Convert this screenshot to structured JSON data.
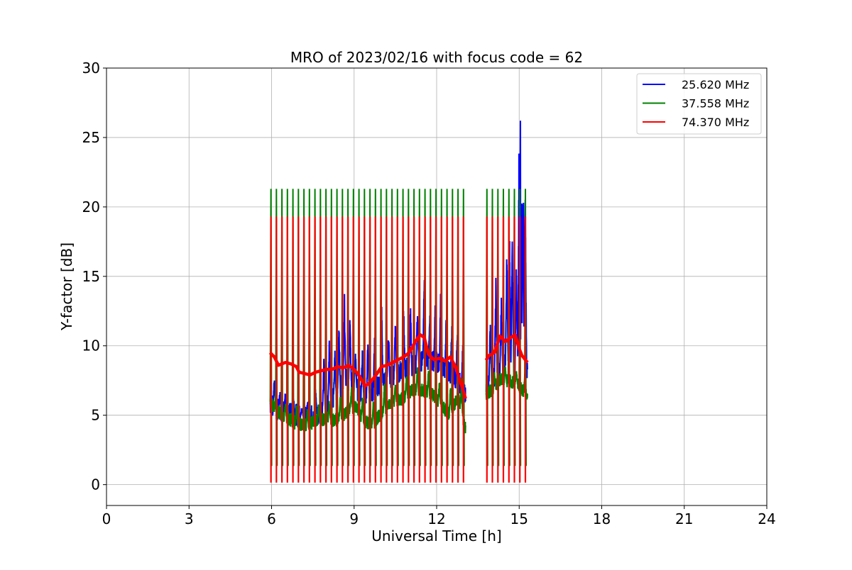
{
  "chart_data": {
    "type": "line",
    "title": "MRO of 2023/02/16 with focus code = 62",
    "xlabel": "Universal Time [h]",
    "ylabel": "Y-factor [dB]",
    "xlim": [
      0,
      24
    ],
    "ylim": [
      -1.5,
      30
    ],
    "xticks": [
      0,
      3,
      6,
      9,
      12,
      15,
      18,
      21,
      24
    ],
    "yticks": [
      0,
      5,
      10,
      15,
      20,
      25,
      30
    ],
    "grid": true,
    "legend_position": "top-right",
    "series": [
      {
        "name": "25.620 MHz",
        "color": "#0000ff",
        "baseline": [
          [
            5.95,
            5.8
          ],
          [
            6.3,
            5.3
          ],
          [
            6.8,
            5.1
          ],
          [
            7.3,
            4.8
          ],
          [
            7.8,
            5.2
          ],
          [
            8.3,
            6.4
          ],
          [
            8.7,
            7.6
          ],
          [
            9.0,
            7.2
          ],
          [
            9.3,
            6.2
          ],
          [
            9.7,
            6.8
          ],
          [
            10.2,
            7.6
          ],
          [
            10.7,
            8.2
          ],
          [
            11.2,
            8.6
          ],
          [
            11.6,
            9.0
          ],
          [
            12.0,
            8.8
          ],
          [
            12.4,
            8.2
          ],
          [
            12.8,
            7.4
          ],
          [
            13.05,
            6.5
          ],
          [
            13.3,
            7.4
          ],
          [
            13.7,
            6.6
          ],
          [
            14.0,
            7.4
          ],
          [
            14.3,
            8.4
          ],
          [
            14.6,
            8.9
          ],
          [
            14.9,
            8.6
          ],
          [
            15.05,
            10.0
          ],
          [
            15.15,
            11.5
          ],
          [
            15.3,
            8.0
          ]
        ],
        "peaks": [
          [
            6.1,
            7.9
          ],
          [
            6.3,
            7.0
          ],
          [
            6.5,
            6.9
          ],
          [
            6.8,
            6.4
          ],
          [
            7.1,
            5.6
          ],
          [
            7.3,
            6.2
          ],
          [
            7.6,
            7.0
          ],
          [
            7.9,
            9.6
          ],
          [
            8.1,
            10.6
          ],
          [
            8.3,
            9.8
          ],
          [
            8.45,
            12.0
          ],
          [
            8.65,
            14.2
          ],
          [
            8.85,
            12.3
          ],
          [
            9.05,
            10.0
          ],
          [
            9.3,
            10.1
          ],
          [
            9.5,
            11.0
          ],
          [
            9.75,
            12.3
          ],
          [
            10.0,
            13.1
          ],
          [
            10.25,
            11.6
          ],
          [
            10.5,
            12.2
          ],
          [
            10.8,
            13.2
          ],
          [
            11.05,
            13.5
          ],
          [
            11.3,
            13.1
          ],
          [
            11.55,
            16.7
          ],
          [
            11.75,
            12.6
          ],
          [
            11.95,
            13.8
          ],
          [
            12.15,
            14.9
          ],
          [
            12.35,
            12.7
          ],
          [
            12.55,
            12.0
          ],
          [
            12.75,
            11.5
          ],
          [
            12.95,
            11.0
          ],
          [
            13.25,
            12.2
          ],
          [
            13.55,
            11.2
          ],
          [
            13.75,
            14.7
          ],
          [
            13.95,
            12.3
          ],
          [
            14.15,
            15.8
          ],
          [
            14.35,
            13.8
          ],
          [
            14.55,
            17.9
          ],
          [
            14.65,
            18.6
          ],
          [
            14.75,
            18.9
          ],
          [
            14.9,
            16.2
          ],
          [
            15.0,
            26.7
          ],
          [
            15.05,
            28.6
          ],
          [
            15.1,
            25.5
          ],
          [
            15.15,
            22.1
          ],
          [
            15.22,
            21.0
          ]
        ]
      },
      {
        "name": "37.558 MHz",
        "color": "#008000",
        "baseline": [
          [
            5.95,
            5.9
          ],
          [
            6.2,
            5.3
          ],
          [
            6.5,
            4.9
          ],
          [
            6.9,
            4.4
          ],
          [
            7.3,
            4.3
          ],
          [
            7.7,
            4.6
          ],
          [
            8.0,
            4.8
          ],
          [
            8.3,
            4.6
          ],
          [
            8.6,
            5.0
          ],
          [
            8.9,
            5.6
          ],
          [
            9.1,
            5.5
          ],
          [
            9.4,
            4.5
          ],
          [
            9.7,
            4.4
          ],
          [
            10.0,
            5.2
          ],
          [
            10.3,
            5.9
          ],
          [
            10.7,
            6.1
          ],
          [
            11.1,
            6.8
          ],
          [
            11.5,
            6.8
          ],
          [
            11.8,
            6.6
          ],
          [
            12.1,
            6.0
          ],
          [
            12.4,
            5.0
          ],
          [
            12.8,
            6.3
          ],
          [
            13.05,
            4.0
          ],
          [
            13.2,
            7.0
          ],
          [
            13.5,
            6.2
          ],
          [
            13.75,
            6.4
          ],
          [
            14.0,
            6.8
          ],
          [
            14.3,
            7.6
          ],
          [
            14.6,
            7.5
          ],
          [
            14.9,
            7.3
          ],
          [
            15.1,
            6.9
          ],
          [
            15.3,
            6.3
          ]
        ],
        "peaks": [
          [
            6.15,
            6.9
          ],
          [
            6.5,
            6.2
          ],
          [
            6.9,
            5.8
          ],
          [
            7.3,
            5.7
          ],
          [
            7.7,
            6.2
          ],
          [
            8.1,
            6.3
          ],
          [
            8.5,
            6.9
          ],
          [
            8.9,
            7.2
          ],
          [
            9.3,
            6.6
          ],
          [
            9.7,
            6.3
          ],
          [
            10.1,
            7.4
          ],
          [
            10.5,
            7.8
          ],
          [
            10.9,
            8.1
          ],
          [
            11.3,
            8.8
          ],
          [
            11.7,
            8.4
          ],
          [
            12.1,
            7.9
          ],
          [
            12.5,
            7.4
          ],
          [
            12.9,
            7.8
          ],
          [
            13.3,
            8.2
          ],
          [
            13.7,
            7.8
          ],
          [
            14.1,
            8.3
          ],
          [
            14.5,
            8.6
          ],
          [
            14.9,
            8.3
          ],
          [
            15.2,
            8.0
          ]
        ],
        "dropout_min": 3.2
      },
      {
        "name": "74.370 MHz",
        "color": "#ff0000",
        "baseline": [
          [
            5.95,
            9.5
          ],
          [
            6.1,
            9.2
          ],
          [
            6.25,
            8.6
          ],
          [
            6.5,
            8.8
          ],
          [
            6.7,
            8.7
          ],
          [
            6.9,
            8.5
          ],
          [
            7.0,
            8.1
          ],
          [
            7.2,
            8.0
          ],
          [
            7.4,
            7.9
          ],
          [
            7.6,
            8.1
          ],
          [
            7.8,
            8.2
          ],
          [
            8.0,
            8.3
          ],
          [
            8.2,
            8.3
          ],
          [
            8.4,
            8.5
          ],
          [
            8.6,
            8.4
          ],
          [
            8.8,
            8.6
          ],
          [
            9.0,
            8.3
          ],
          [
            9.2,
            7.8
          ],
          [
            9.4,
            7.1
          ],
          [
            9.6,
            7.4
          ],
          [
            9.8,
            7.9
          ],
          [
            10.0,
            8.5
          ],
          [
            10.2,
            8.6
          ],
          [
            10.4,
            8.8
          ],
          [
            10.6,
            9.0
          ],
          [
            10.8,
            9.2
          ],
          [
            11.0,
            9.5
          ],
          [
            11.2,
            10.2
          ],
          [
            11.4,
            10.8
          ],
          [
            11.55,
            10.6
          ],
          [
            11.7,
            9.4
          ],
          [
            11.9,
            9.0
          ],
          [
            12.1,
            9.1
          ],
          [
            12.3,
            8.9
          ],
          [
            12.5,
            9.2
          ],
          [
            12.7,
            8.4
          ],
          [
            12.9,
            7.2
          ],
          [
            13.05,
            6.2
          ],
          [
            13.2,
            9.4
          ],
          [
            13.5,
            9.0
          ],
          [
            13.75,
            8.8
          ],
          [
            13.9,
            9.3
          ],
          [
            14.1,
            9.5
          ],
          [
            14.3,
            10.7
          ],
          [
            14.5,
            10.3
          ],
          [
            14.7,
            10.6
          ],
          [
            14.85,
            10.8
          ],
          [
            15.0,
            9.8
          ],
          [
            15.1,
            9.3
          ],
          [
            15.3,
            8.8
          ]
        ],
        "tops": 19.3
      }
    ],
    "calibration": {
      "period_h": 0.2,
      "top_dB": 21.3,
      "bottom_dB": 0.15,
      "segments": [
        [
          5.95,
          13.05
        ],
        [
          13.8,
          15.3
        ]
      ]
    }
  }
}
